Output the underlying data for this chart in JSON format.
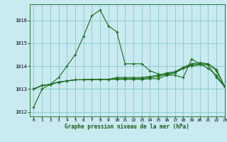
{
  "title": "Graphe pression niveau de la mer (hPa)",
  "background_color": "#c8eaf0",
  "grid_color": "#88c8c8",
  "line_color": "#1a6b1a",
  "xlim": [
    -0.5,
    23
  ],
  "ylim": [
    1011.8,
    1016.7
  ],
  "yticks": [
    1012,
    1013,
    1014,
    1015,
    1016
  ],
  "xticks": [
    0,
    1,
    2,
    3,
    4,
    5,
    6,
    7,
    8,
    9,
    10,
    11,
    12,
    13,
    14,
    15,
    16,
    17,
    18,
    19,
    20,
    21,
    22,
    23
  ],
  "series": [
    [
      1012.2,
      1013.0,
      1013.2,
      1013.5,
      1014.0,
      1014.5,
      1015.3,
      1016.2,
      1016.45,
      1015.75,
      1015.5,
      1014.1,
      1014.1,
      1014.1,
      1013.8,
      1013.65,
      1013.6,
      1013.6,
      1013.5,
      1014.3,
      1014.1,
      1013.9,
      1013.6,
      1013.1
    ],
    [
      1013.0,
      1013.15,
      1013.2,
      1013.3,
      1013.35,
      1013.4,
      1013.4,
      1013.42,
      1013.42,
      1013.42,
      1013.42,
      1013.42,
      1013.42,
      1013.42,
      1013.45,
      1013.45,
      1013.6,
      1013.7,
      1013.9,
      1014.0,
      1014.05,
      1014.05,
      1013.5,
      1013.1
    ],
    [
      1013.0,
      1013.15,
      1013.2,
      1013.3,
      1013.35,
      1013.4,
      1013.4,
      1013.42,
      1013.42,
      1013.42,
      1013.45,
      1013.45,
      1013.45,
      1013.45,
      1013.5,
      1013.55,
      1013.65,
      1013.75,
      1013.9,
      1014.05,
      1014.1,
      1014.1,
      1013.8,
      1013.1
    ],
    [
      1013.0,
      1013.15,
      1013.2,
      1013.3,
      1013.35,
      1013.4,
      1013.4,
      1013.42,
      1013.42,
      1013.42,
      1013.5,
      1013.5,
      1013.5,
      1013.5,
      1013.55,
      1013.6,
      1013.7,
      1013.75,
      1013.95,
      1014.1,
      1014.15,
      1014.1,
      1013.85,
      1013.1
    ]
  ]
}
